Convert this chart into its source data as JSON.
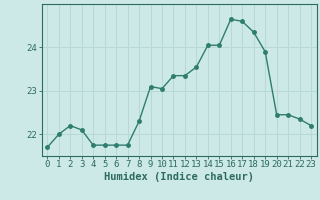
{
  "x": [
    0,
    1,
    2,
    3,
    4,
    5,
    6,
    7,
    8,
    9,
    10,
    11,
    12,
    13,
    14,
    15,
    16,
    17,
    18,
    19,
    20,
    21,
    22,
    23
  ],
  "y": [
    21.7,
    22.0,
    22.2,
    22.1,
    21.75,
    21.75,
    21.75,
    21.75,
    22.3,
    23.1,
    23.05,
    23.35,
    23.35,
    23.55,
    24.05,
    24.05,
    24.65,
    24.6,
    24.35,
    23.9,
    22.45,
    22.45,
    22.35,
    22.2
  ],
  "line_color": "#2e7d6e",
  "marker": "o",
  "markersize": 2.5,
  "linewidth": 1.0,
  "bg_color": "#cce9e7",
  "grid_color": "#b8d8d5",
  "xlabel": "Humidex (Indice chaleur)",
  "xlim": [
    -0.5,
    23.5
  ],
  "ylim": [
    21.5,
    25.0
  ],
  "yticks": [
    22,
    23,
    24
  ],
  "xticks": [
    0,
    1,
    2,
    3,
    4,
    5,
    6,
    7,
    8,
    9,
    10,
    11,
    12,
    13,
    14,
    15,
    16,
    17,
    18,
    19,
    20,
    21,
    22,
    23
  ],
  "xlabel_fontsize": 7.5,
  "tick_fontsize": 6.5,
  "tick_color": "#2e6b5e",
  "axis_color": "#2e6b5e"
}
